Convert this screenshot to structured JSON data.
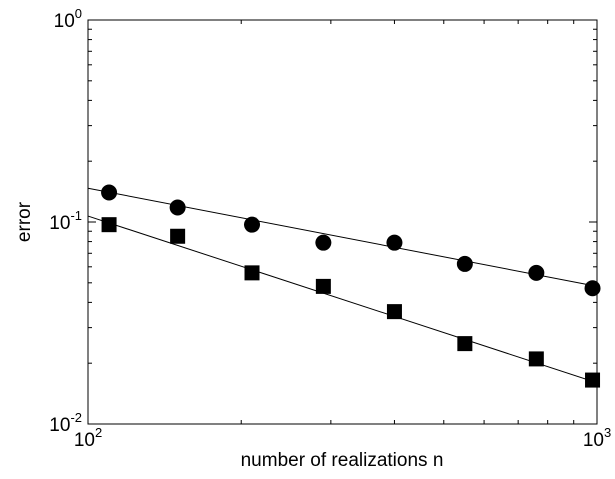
{
  "chart_data": {
    "type": "scatter",
    "title": "",
    "xlabel": "number of realizations n",
    "ylabel": "error",
    "xscale": "log",
    "yscale": "log",
    "xlim": [
      100,
      1000
    ],
    "ylim": [
      0.01,
      1
    ],
    "grid": false,
    "legend": "none",
    "x_ticks": [
      {
        "value": 100,
        "base": "10",
        "exp": "2"
      },
      {
        "value": 1000,
        "base": "10",
        "exp": "3"
      }
    ],
    "y_ticks": [
      {
        "value": 0.01,
        "base": "10",
        "exp": "-2"
      },
      {
        "value": 0.1,
        "base": "10",
        "exp": "-1"
      },
      {
        "value": 1,
        "base": "10",
        "exp": "0"
      }
    ],
    "series": [
      {
        "marker": "circle",
        "color": "#000000",
        "points": [
          {
            "x": 110,
            "y": 0.14
          },
          {
            "x": 150,
            "y": 0.118
          },
          {
            "x": 210,
            "y": 0.097
          },
          {
            "x": 290,
            "y": 0.079
          },
          {
            "x": 400,
            "y": 0.079
          },
          {
            "x": 550,
            "y": 0.062
          },
          {
            "x": 760,
            "y": 0.056
          },
          {
            "x": 980,
            "y": 0.047
          }
        ],
        "fit": {
          "x": [
            100,
            1000
          ],
          "y": [
            0.147,
            0.048
          ]
        }
      },
      {
        "marker": "square",
        "color": "#000000",
        "points": [
          {
            "x": 110,
            "y": 0.097
          },
          {
            "x": 150,
            "y": 0.085
          },
          {
            "x": 210,
            "y": 0.056
          },
          {
            "x": 290,
            "y": 0.048
          },
          {
            "x": 400,
            "y": 0.036
          },
          {
            "x": 550,
            "y": 0.025
          },
          {
            "x": 760,
            "y": 0.021
          },
          {
            "x": 980,
            "y": 0.0165
          }
        ],
        "fit": {
          "x": [
            100,
            1000
          ],
          "y": [
            0.107,
            0.016
          ]
        }
      }
    ]
  }
}
